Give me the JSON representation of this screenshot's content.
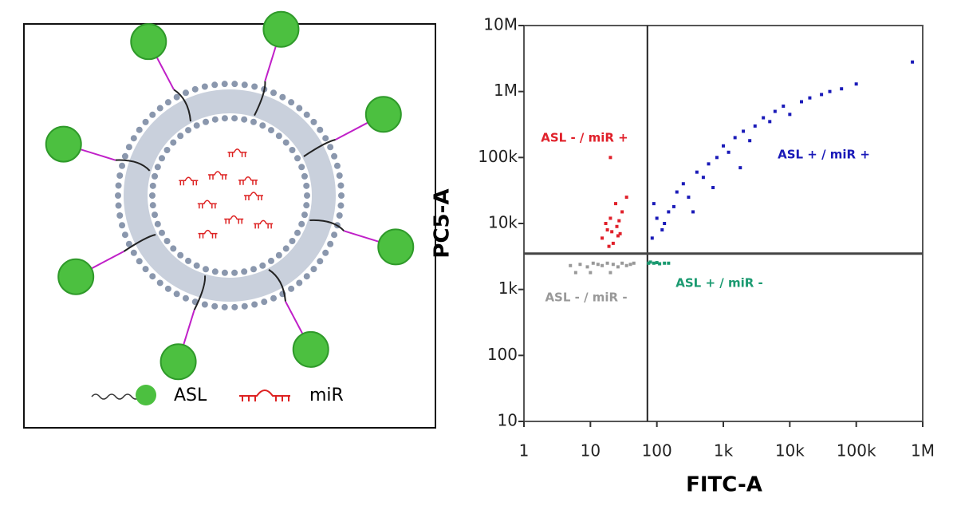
{
  "diagram": {
    "legend": [
      "ASL",
      "miR"
    ]
  },
  "chart_data": {
    "type": "scatter",
    "xlabel": "FITC-A",
    "ylabel": "PC5-A",
    "xscale": "log",
    "yscale": "log",
    "xlim": [
      1,
      1000000
    ],
    "ylim": [
      10,
      10000000
    ],
    "xticks": [
      1,
      10,
      100,
      {
        "value": 1000,
        "label": "1k"
      },
      {
        "value": 10000,
        "label": "10k"
      },
      {
        "value": 100000,
        "label": "100k"
      },
      {
        "value": 1000000,
        "label": "1M"
      }
    ],
    "yticks": [
      10,
      100,
      {
        "value": 1000,
        "label": "1k"
      },
      {
        "value": 10000,
        "label": "10k"
      },
      {
        "value": 100000,
        "label": "100k"
      },
      {
        "value": 1000000,
        "label": "1M"
      },
      {
        "value": 10000000,
        "label": "10M"
      }
    ],
    "gate_x": 72,
    "gate_y": 3500,
    "series": [
      {
        "name": "ASL - / miR +",
        "color": "#e0202a",
        "x": [
          15,
          18,
          20,
          22,
          25,
          28,
          30,
          17,
          24,
          35,
          19,
          27,
          21,
          26,
          20
        ],
        "values": [
          6000,
          8000,
          12000,
          5000,
          9000,
          7000,
          15000,
          10000,
          20000,
          25000,
          4500,
          11000,
          7500,
          6500,
          100000
        ]
      },
      {
        "name": "ASL + / miR +",
        "color": "#1a1ab8",
        "x": [
          85,
          100,
          120,
          90,
          150,
          200,
          130,
          250,
          300,
          400,
          180,
          500,
          600,
          800,
          1000,
          1200,
          1500,
          2000,
          2500,
          3000,
          4000,
          5000,
          6000,
          8000,
          10000,
          15000,
          20000,
          30000,
          40000,
          60000,
          100000,
          700000,
          350,
          700,
          1800
        ],
        "values": [
          6000,
          12000,
          8000,
          20000,
          15000,
          30000,
          10000,
          40000,
          25000,
          60000,
          18000,
          50000,
          80000,
          100000,
          150000,
          120000,
          200000,
          250000,
          180000,
          300000,
          400000,
          350000,
          500000,
          600000,
          450000,
          700000,
          800000,
          900000,
          1000000,
          1100000,
          1300000,
          2800000,
          15000,
          35000,
          70000
        ]
      },
      {
        "name": "ASL + / miR -",
        "color": "#1a9a70",
        "x": [
          75,
          80,
          90,
          100,
          110,
          130,
          150
        ],
        "values": [
          2500,
          2600,
          2500,
          2550,
          2450,
          2500,
          2500
        ]
      },
      {
        "name": "ASL - / miR -",
        "color": "#999999",
        "x": [
          5,
          7,
          9,
          11,
          13,
          15,
          18,
          22,
          26,
          30,
          35,
          40,
          45,
          6,
          10,
          20
        ],
        "values": [
          2300,
          2400,
          2200,
          2500,
          2400,
          2300,
          2500,
          2400,
          2200,
          2500,
          2300,
          2400,
          2500,
          1800,
          1800,
          1800
        ]
      }
    ]
  }
}
